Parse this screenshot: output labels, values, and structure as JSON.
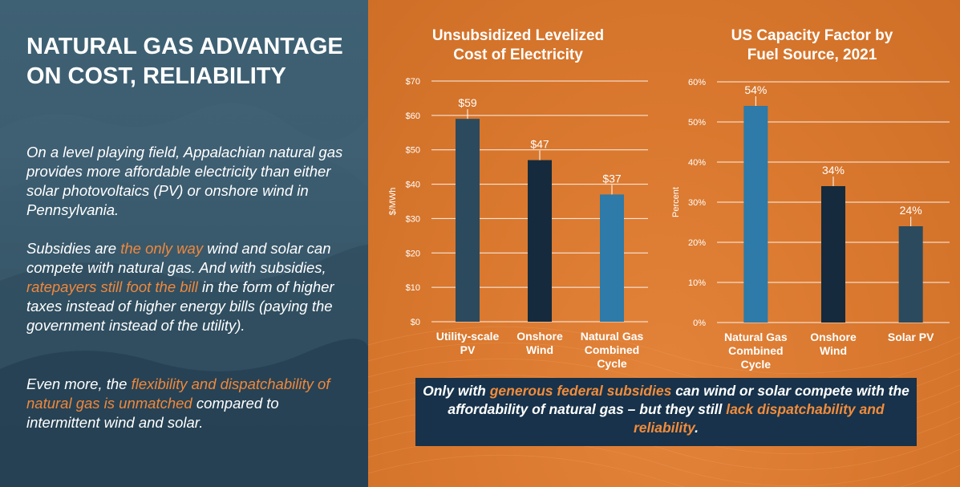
{
  "slide": {
    "title": "NATURAL GAS ADVANTAGE ON COST, RELIABILITY",
    "paragraph1": "On a level playing field, Appalachian natural gas provides more affordable electricity than either solar photovoltaics (PV) or onshore wind in Pennsylvania.",
    "paragraph2": {
      "a": "Subsidies are ",
      "b": "the only way",
      "c": " wind and solar can compete with natural gas. And with subsidies, ",
      "d": "ratepayers still foot the bill",
      "e": " in the form of higher taxes instead of higher energy bills (paying the government instead of the utility)."
    },
    "paragraph3": {
      "a": "Even more, the ",
      "b": "flexibility and dispatchability of natural gas is unmatched",
      "c": " compared to intermittent wind and solar."
    },
    "callout": {
      "a": "Only with ",
      "b": "generous federal subsidies",
      "c": " can wind or solar compete with the affordability of natural gas – but they still ",
      "d": "lack dispatchability and reliability",
      "e": "."
    }
  },
  "colors": {
    "left_bg": "#2f4d60",
    "right_bg": "#d9782e",
    "highlight": "#f0883c",
    "callout_bg": "#17324a",
    "bar_dark_slate": "#2b4a5e",
    "bar_navy": "#152a3c",
    "bar_blue": "#2e7aa8"
  },
  "chart_data": [
    {
      "type": "bar",
      "title": "Unsubsidized Levelized Cost of Electricity",
      "ylabel": "$/MWh",
      "xlabel": "",
      "ylim": [
        0,
        70
      ],
      "yticks": [
        0,
        10,
        20,
        30,
        40,
        50,
        60,
        70
      ],
      "ytick_labels": [
        "$0",
        "$10",
        "$20",
        "$30",
        "$40",
        "$50",
        "$60",
        "$70"
      ],
      "grid": true,
      "categories": [
        "Utility-scale PV",
        "Onshore Wind",
        "Natural Gas Combined Cycle"
      ],
      "category_lines": [
        [
          "Utility-scale",
          "PV"
        ],
        [
          "Onshore",
          "Wind"
        ],
        [
          "Natural Gas",
          "Combined",
          "Cycle"
        ]
      ],
      "values": [
        59,
        47,
        37
      ],
      "data_labels": [
        "$59",
        "$47",
        "$37"
      ],
      "bar_colors": [
        "#2b4a5e",
        "#152a3c",
        "#2e7aa8"
      ]
    },
    {
      "type": "bar",
      "title": "US Capacity Factor by Fuel Source, 2021",
      "ylabel": "Percent",
      "xlabel": "",
      "ylim": [
        0,
        60
      ],
      "yticks": [
        0,
        10,
        20,
        30,
        40,
        50,
        60
      ],
      "ytick_labels": [
        "0%",
        "10%",
        "20%",
        "30%",
        "40%",
        "50%",
        "60%"
      ],
      "grid": true,
      "categories": [
        "Natural Gas Combined Cycle",
        "Onshore Wind",
        "Solar PV"
      ],
      "category_lines": [
        [
          "Natural Gas",
          "Combined",
          "Cycle"
        ],
        [
          "Onshore",
          "Wind"
        ],
        [
          "Solar PV"
        ]
      ],
      "values": [
        54,
        34,
        24
      ],
      "data_labels": [
        "54%",
        "34%",
        "24%"
      ],
      "bar_colors": [
        "#2e7aa8",
        "#152a3c",
        "#2b4a5e"
      ]
    }
  ]
}
